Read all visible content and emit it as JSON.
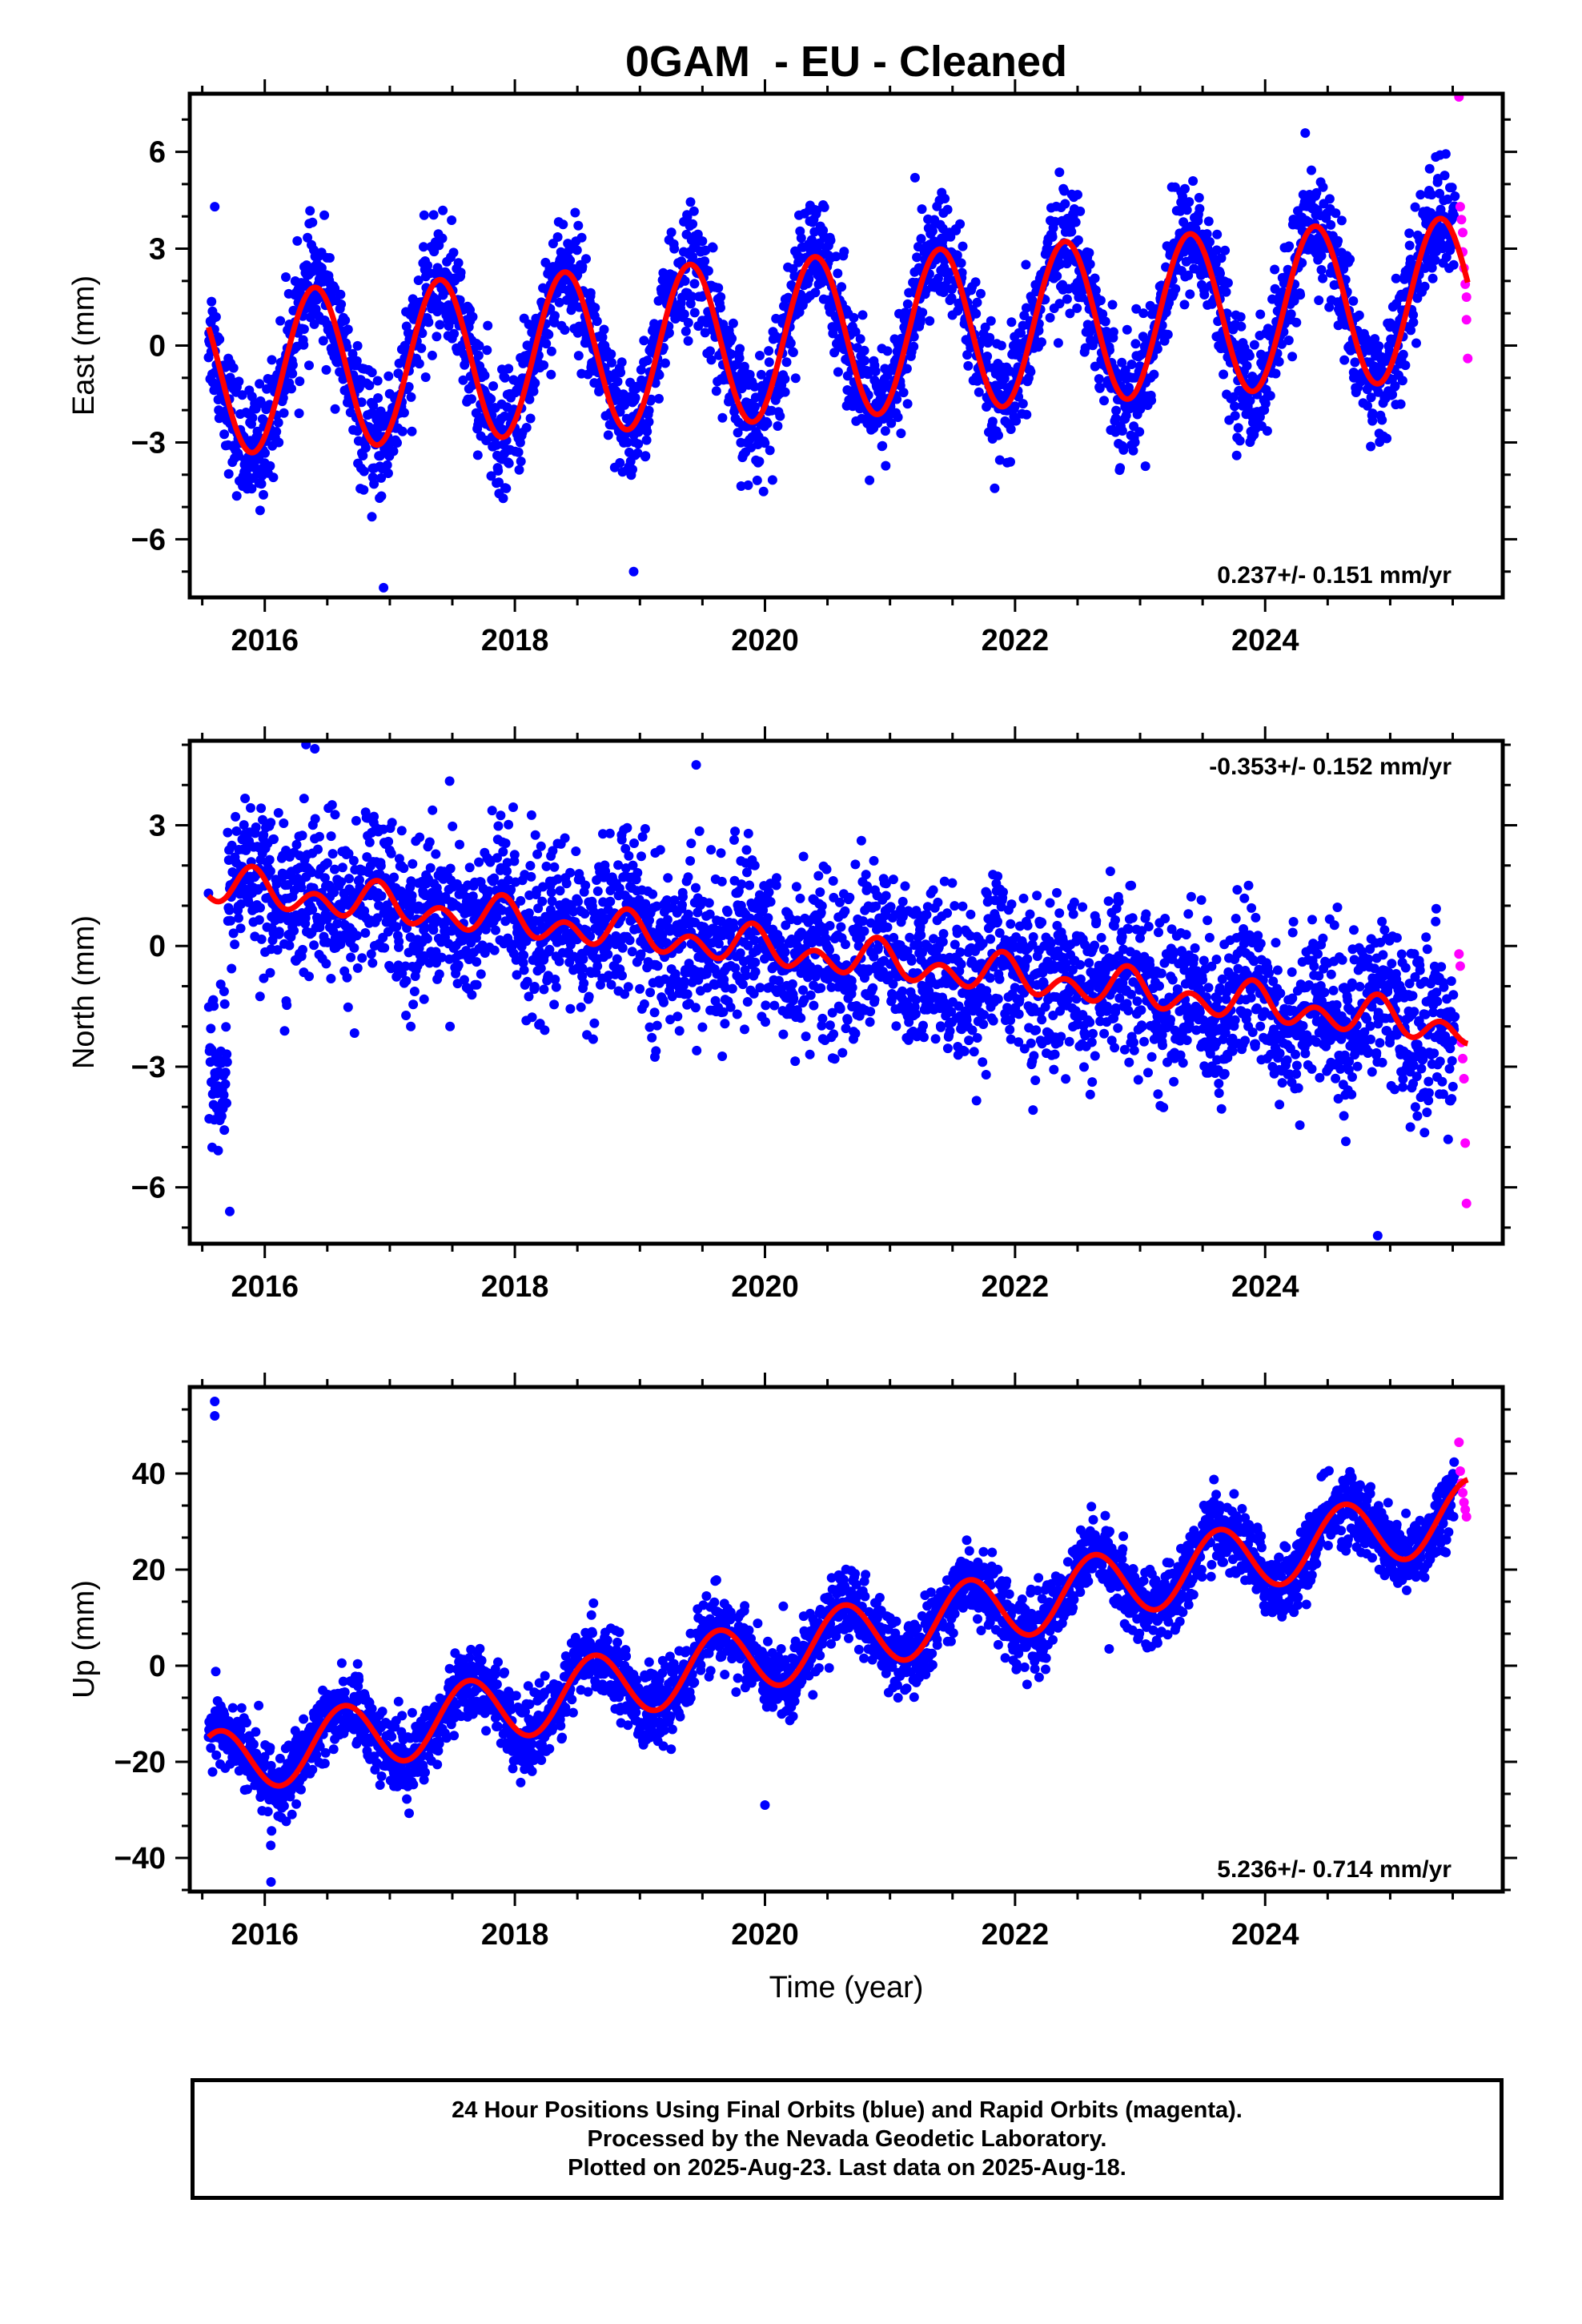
{
  "title": "0GAM  - EU - Cleaned",
  "colors": {
    "final_orbits": "#0000ff",
    "rapid_orbits": "#ff00ff",
    "model_fit": "#ff0000",
    "axes": "#000000"
  },
  "chart_data": [
    {
      "type": "scatter",
      "component": "East",
      "ylabel": "East (mm)",
      "xlabel": "",
      "xlim": [
        2015.4,
        2025.9
      ],
      "ylim": [
        -7.8,
        7.8
      ],
      "x_ticks": [
        2016,
        2018,
        2020,
        2022,
        2024
      ],
      "x_tick_labels": [
        "2016",
        "2018",
        "2020",
        "2022",
        "2024"
      ],
      "y_ticks": [
        -6,
        -3,
        0,
        3,
        6
      ],
      "y_tick_labels": [
        "−6",
        "−3",
        "0",
        "3",
        "6"
      ],
      "rate_label": "0.237+/- 0.151 mm/yr",
      "rate_label_position": "bottom-right",
      "model": {
        "description": "offset + trend + annual/semiannual sinusoid",
        "start_year": 2015.55,
        "end_year": 2025.62,
        "offset_mm": -0.9,
        "rate_mm_per_yr": 0.237,
        "annual_amplitude_mm": 2.5,
        "annual_peak_year_fraction": 0.4,
        "semiannual_amplitude_mm": 0.0,
        "semiannual_peak_year_fraction": 0.0
      },
      "final_orbit_scatter": {
        "x_range": [
          2015.55,
          2025.52
        ],
        "noise_sd_mm": 0.9,
        "approx_points": 3200
      },
      "rapid_orbit_points": [
        [
          2025.55,
          7.7
        ],
        [
          2025.56,
          4.3
        ],
        [
          2025.57,
          3.9
        ],
        [
          2025.58,
          3.5
        ],
        [
          2025.58,
          2.9
        ],
        [
          2025.59,
          2.4
        ],
        [
          2025.6,
          1.9
        ],
        [
          2025.61,
          1.5
        ],
        [
          2025.61,
          0.8
        ],
        [
          2025.62,
          -0.4
        ]
      ],
      "notable_final_points": [
        [
          2015.6,
          4.3
        ],
        [
          2016.95,
          -7.5
        ],
        [
          2018.95,
          -7.0
        ],
        [
          2021.2,
          5.2
        ]
      ]
    },
    {
      "type": "scatter",
      "component": "North",
      "ylabel": "North (mm)",
      "xlabel": "",
      "xlim": [
        2015.4,
        2025.9
      ],
      "ylim": [
        -7.4,
        5.1
      ],
      "x_ticks": [
        2016,
        2018,
        2020,
        2022,
        2024
      ],
      "x_tick_labels": [
        "2016",
        "2018",
        "2020",
        "2022",
        "2024"
      ],
      "y_ticks": [
        -6,
        -3,
        0,
        3
      ],
      "y_tick_labels": [
        "−6",
        "−3",
        "0",
        "3"
      ],
      "rate_label": "-0.353+/- 0.152 mm/yr",
      "rate_label_position": "top-right",
      "model": {
        "description": "offset + trend + annual/semiannual sinusoid",
        "start_year": 2015.55,
        "end_year": 2025.62,
        "offset_mm": 1.5,
        "rate_mm_per_yr": -0.353,
        "annual_amplitude_mm": 0.25,
        "annual_peak_year_fraction": 0.9,
        "semiannual_amplitude_mm": 0.35,
        "semiannual_peak_year_fraction": 0.4
      },
      "final_orbit_scatter": {
        "x_range": [
          2015.55,
          2025.52
        ],
        "noise_sd_mm": 1.0,
        "approx_points": 3200
      },
      "early_cluster": {
        "x_range": [
          2015.55,
          2015.7
        ],
        "y_center_mm": -3.2,
        "noise_sd_mm": 1.0
      },
      "rapid_orbit_points": [
        [
          2025.55,
          -0.2
        ],
        [
          2025.56,
          -0.5
        ],
        [
          2025.57,
          -2.4
        ],
        [
          2025.58,
          -2.8
        ],
        [
          2025.59,
          -3.3
        ],
        [
          2025.6,
          -4.9
        ],
        [
          2025.61,
          -6.4
        ]
      ],
      "notable_final_points": [
        [
          2015.72,
          -6.6
        ],
        [
          2016.4,
          4.9
        ],
        [
          2019.45,
          4.5
        ],
        [
          2024.9,
          -7.2
        ]
      ]
    },
    {
      "type": "scatter",
      "component": "Up",
      "ylabel": "Up (mm)",
      "xlabel": "Time (year)",
      "xlim": [
        2015.4,
        2025.9
      ],
      "ylim": [
        -47,
        58
      ],
      "x_ticks": [
        2016,
        2018,
        2020,
        2022,
        2024
      ],
      "x_tick_labels": [
        "2016",
        "2018",
        "2020",
        "2022",
        "2024"
      ],
      "y_ticks": [
        -40,
        -20,
        0,
        20,
        40
      ],
      "y_tick_labels": [
        "−40",
        "−20",
        "0",
        "20",
        "40"
      ],
      "rate_label": "5.236+/- 0.714 mm/yr",
      "rate_label_position": "bottom-right",
      "model": {
        "description": "offset + trend + annual/semiannual sinusoid",
        "start_year": 2015.55,
        "end_year": 2025.62,
        "offset_mm": -21.0,
        "rate_mm_per_yr": 5.236,
        "annual_amplitude_mm": 7.0,
        "annual_peak_year_fraction": 0.63,
        "semiannual_amplitude_mm": 0.0,
        "semiannual_peak_year_fraction": 0.0
      },
      "final_orbit_scatter": {
        "x_range": [
          2015.55,
          2025.52
        ],
        "noise_sd_mm": 3.8,
        "approx_points": 3200
      },
      "rapid_orbit_points": [
        [
          2025.55,
          46.5
        ],
        [
          2025.56,
          40.5
        ],
        [
          2025.57,
          38.0
        ],
        [
          2025.58,
          36.0
        ],
        [
          2025.59,
          34.0
        ],
        [
          2025.6,
          32.5
        ],
        [
          2025.61,
          31.0
        ]
      ],
      "notable_final_points": [
        [
          2015.6,
          55.0
        ],
        [
          2015.6,
          52.0
        ],
        [
          2016.05,
          -45.0
        ],
        [
          2020.0,
          -29.0
        ]
      ]
    }
  ],
  "caption": {
    "line1": "24 Hour Positions Using Final Orbits (blue) and Rapid Orbits (magenta).",
    "line2": "Processed by the Nevada Geodetic Laboratory.",
    "line3": "Plotted on 2025-Aug-23. Last data on 2025-Aug-18."
  }
}
